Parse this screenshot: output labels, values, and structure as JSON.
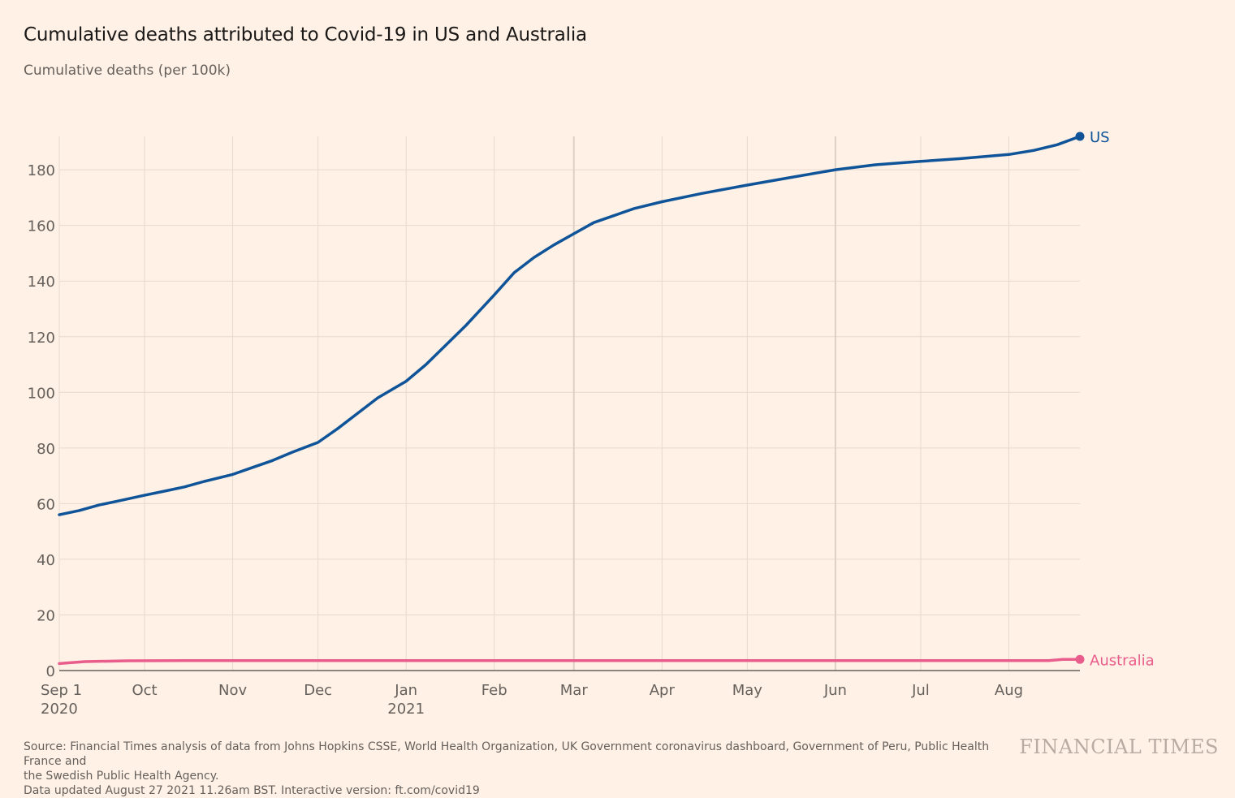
{
  "header": {
    "title": "Cumulative deaths attributed to Covid-19 in US and Australia",
    "subtitle": "Cumulative deaths (per 100k)"
  },
  "footer": {
    "source_line1": "Source: Financial Times analysis of data from Johns Hopkins CSSE, World Health Organization, UK Government coronavirus dashboard, Government of Peru, Public Health France and",
    "source_line2": "the Swedish Public Health Agency.",
    "updated": "Data updated August 27 2021 11.26am BST. Interactive version: ft.com/covid19",
    "brand": "FINANCIAL TIMES"
  },
  "chart_data": {
    "type": "line",
    "title": "Cumulative deaths attributed to Covid-19 in US and Australia",
    "ylabel": "Cumulative deaths (per 100k)",
    "ylim": [
      0,
      192
    ],
    "yticks": [
      0,
      20,
      40,
      60,
      80,
      100,
      120,
      140,
      160,
      180
    ],
    "xlim": [
      "2020-09-01",
      "2021-08-26"
    ],
    "xticks": [
      {
        "date": "2020-09-01",
        "label": "Sep 1",
        "sublabel": "2020"
      },
      {
        "date": "2020-10-01",
        "label": "Oct",
        "sublabel": ""
      },
      {
        "date": "2020-11-01",
        "label": "Nov",
        "sublabel": ""
      },
      {
        "date": "2020-12-01",
        "label": "Dec",
        "sublabel": ""
      },
      {
        "date": "2021-01-01",
        "label": "Jan",
        "sublabel": "2021"
      },
      {
        "date": "2021-02-01",
        "label": "Feb",
        "sublabel": ""
      },
      {
        "date": "2021-03-01",
        "label": "Mar",
        "sublabel": ""
      },
      {
        "date": "2021-04-01",
        "label": "Apr",
        "sublabel": ""
      },
      {
        "date": "2021-05-01",
        "label": "May",
        "sublabel": ""
      },
      {
        "date": "2021-06-01",
        "label": "Jun",
        "sublabel": ""
      },
      {
        "date": "2021-07-01",
        "label": "Jul",
        "sublabel": ""
      },
      {
        "date": "2021-08-01",
        "label": "Aug",
        "sublabel": ""
      }
    ],
    "grid": true,
    "legend": "end-of-line labels",
    "series": [
      {
        "name": "US",
        "color": "#0f5499",
        "points": [
          [
            "2020-09-01",
            56
          ],
          [
            "2020-09-08",
            57.5
          ],
          [
            "2020-09-15",
            59.5
          ],
          [
            "2020-09-22",
            61
          ],
          [
            "2020-10-01",
            63
          ],
          [
            "2020-10-08",
            64.5
          ],
          [
            "2020-10-15",
            66
          ],
          [
            "2020-10-22",
            68
          ],
          [
            "2020-11-01",
            70.5
          ],
          [
            "2020-11-08",
            73
          ],
          [
            "2020-11-15",
            75.5
          ],
          [
            "2020-11-22",
            78.5
          ],
          [
            "2020-12-01",
            82
          ],
          [
            "2020-12-08",
            87
          ],
          [
            "2020-12-15",
            92.5
          ],
          [
            "2020-12-22",
            98
          ],
          [
            "2021-01-01",
            104
          ],
          [
            "2021-01-08",
            110
          ],
          [
            "2021-01-15",
            117
          ],
          [
            "2021-01-22",
            124
          ],
          [
            "2021-02-01",
            135
          ],
          [
            "2021-02-08",
            143
          ],
          [
            "2021-02-15",
            148.5
          ],
          [
            "2021-02-22",
            153
          ],
          [
            "2021-03-01",
            157
          ],
          [
            "2021-03-08",
            161
          ],
          [
            "2021-03-15",
            163.5
          ],
          [
            "2021-03-22",
            166
          ],
          [
            "2021-04-01",
            168.5
          ],
          [
            "2021-04-15",
            171.5
          ],
          [
            "2021-05-01",
            174.5
          ],
          [
            "2021-05-15",
            177
          ],
          [
            "2021-06-01",
            180
          ],
          [
            "2021-06-15",
            181.8
          ],
          [
            "2021-07-01",
            183
          ],
          [
            "2021-07-15",
            184
          ],
          [
            "2021-08-01",
            185.5
          ],
          [
            "2021-08-10",
            187
          ],
          [
            "2021-08-18",
            189
          ],
          [
            "2021-08-26",
            192
          ]
        ]
      },
      {
        "name": "Australia",
        "color": "#e95d8c",
        "points": [
          [
            "2020-09-01",
            2.5
          ],
          [
            "2020-09-10",
            3.2
          ],
          [
            "2020-09-25",
            3.5
          ],
          [
            "2020-10-15",
            3.6
          ],
          [
            "2021-01-01",
            3.6
          ],
          [
            "2021-05-01",
            3.6
          ],
          [
            "2021-08-15",
            3.6
          ],
          [
            "2021-08-20",
            4.0
          ],
          [
            "2021-08-26",
            4.0
          ]
        ]
      }
    ]
  }
}
